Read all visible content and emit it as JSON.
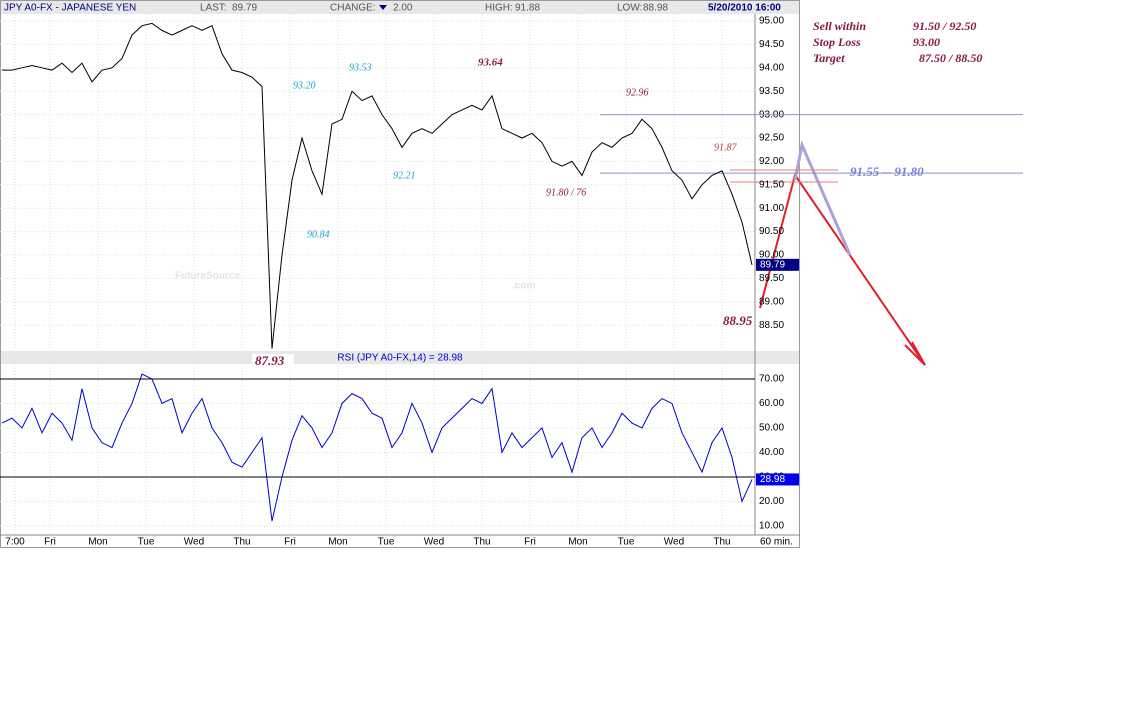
{
  "chart_data": {
    "type": "line",
    "title": "JPY A0-FX - JAPANESE YEN",
    "header": {
      "last_label": "LAST:",
      "last": "89.79",
      "change_label": "CHANGE:",
      "change": "2.00",
      "high_label": "HIGH:",
      "high": "91.88",
      "low_label": "LOW:",
      "low": "88.98",
      "date": "5/20/2010 16:00"
    },
    "watermark": "FutureSource",
    "watermark_suffix": ".com",
    "series": [
      {
        "name": "JPY A0-FX",
        "color": "#000000",
        "values": [
          93.95,
          93.95,
          94.0,
          94.05,
          94.0,
          93.95,
          94.1,
          93.9,
          94.1,
          93.7,
          93.95,
          94.0,
          94.2,
          94.7,
          94.9,
          94.95,
          94.8,
          94.7,
          94.8,
          94.9,
          94.8,
          94.9,
          94.3,
          93.95,
          93.9,
          93.8,
          93.6,
          88.0,
          90.0,
          91.6,
          92.5,
          91.8,
          91.3,
          92.8,
          92.9,
          93.5,
          93.3,
          93.4,
          93.0,
          92.7,
          92.3,
          92.6,
          92.7,
          92.6,
          92.8,
          93.0,
          93.1,
          93.2,
          93.1,
          93.4,
          92.7,
          92.6,
          92.5,
          92.6,
          92.4,
          92.0,
          91.9,
          92.0,
          91.7,
          92.2,
          92.4,
          92.3,
          92.5,
          92.6,
          92.9,
          92.7,
          92.3,
          91.8,
          91.6,
          91.2,
          91.5,
          91.7,
          91.8,
          91.3,
          90.7,
          89.79
        ]
      }
    ],
    "last_box": "89.79",
    "xlim": [
      -0.2,
      75.3
    ],
    "xticks": [
      {
        "value": 1.3,
        "label": "7:00"
      },
      {
        "value": 4.8,
        "label": "Fri"
      },
      {
        "value": 9.6,
        "label": "Mon"
      },
      {
        "value": 14.4,
        "label": "Tue"
      },
      {
        "value": 19.2,
        "label": "Wed"
      },
      {
        "value": 24,
        "label": "Thu"
      },
      {
        "value": 28.8,
        "label": "Fri"
      },
      {
        "value": 33.6,
        "label": "Mon"
      },
      {
        "value": 38.4,
        "label": "Tue"
      },
      {
        "value": 43.2,
        "label": "Wed"
      },
      {
        "value": 48,
        "label": "Thu"
      },
      {
        "value": 52.8,
        "label": "Fri"
      },
      {
        "value": 57.6,
        "label": "Mon"
      },
      {
        "value": 62.4,
        "label": "Tue"
      },
      {
        "value": 67.2,
        "label": "Wed"
      },
      {
        "value": 72,
        "label": "Thu"
      }
    ],
    "x_unit": "60 min.",
    "ylim": [
      87.97,
      95.15
    ],
    "yticks": [
      {
        "value": 95,
        "label": "95.00"
      },
      {
        "value": 94.5,
        "label": "94.50"
      },
      {
        "value": 94,
        "label": "94.00"
      },
      {
        "value": 93.5,
        "label": "93.50"
      },
      {
        "value": 93,
        "label": "93.00"
      },
      {
        "value": 92.5,
        "label": "92.50"
      },
      {
        "value": 92,
        "label": "92.00"
      },
      {
        "value": 91.5,
        "label": "91.50"
      },
      {
        "value": 91,
        "label": "91.00"
      },
      {
        "value": 90.5,
        "label": "90.50"
      },
      {
        "value": 90,
        "label": "90.00"
      },
      {
        "value": 89.5,
        "label": "89.50"
      },
      {
        "value": 89,
        "label": "89.00"
      },
      {
        "value": 88.5,
        "label": "88.50"
      }
    ],
    "levels": [
      93.0,
      91.75
    ],
    "grid": true,
    "annotations": [
      {
        "text": "93.20",
        "color": "#1aa0c8"
      },
      {
        "text": "93.53",
        "color": "#1aa0c8"
      },
      {
        "text": "92.21",
        "color": "#1aa0c8"
      },
      {
        "text": "90.84",
        "color": "#1aa0c8"
      },
      {
        "text": "93.64",
        "color": "#8b1a3a"
      },
      {
        "text": "92.96",
        "color": "#8b1a3a"
      },
      {
        "text": "91.87",
        "color": "#c0304a"
      },
      {
        "text": "91.80  / 76",
        "color": "#8b1a3a"
      },
      {
        "text": "88.95",
        "color": "#8b1a3a"
      },
      {
        "text": "87.93",
        "color": "#8b1a3a"
      },
      {
        "text": "91.55 -- 91.80",
        "color": "#8080d8"
      }
    ],
    "notes": [
      [
        "Sell within",
        "91.50 / 92.50"
      ],
      [
        "Stop Loss",
        "93.00"
      ],
      [
        "Target",
        "87.50 / 88.50"
      ]
    ],
    "rsi": {
      "title": "RSI (JPY A0-FX,14) = 28.98",
      "color": "#0000cc",
      "values": [
        52,
        54,
        50,
        58,
        48,
        56,
        52,
        45,
        66,
        50,
        44,
        42,
        52,
        60,
        72,
        70,
        60,
        62,
        48,
        56,
        62,
        50,
        44,
        36,
        34,
        40,
        46,
        12,
        30,
        45,
        55,
        50,
        42,
        48,
        60,
        64,
        62,
        56,
        54,
        42,
        48,
        60,
        52,
        40,
        50,
        54,
        58,
        62,
        60,
        66,
        40,
        48,
        42,
        46,
        50,
        38,
        44,
        32,
        46,
        50,
        42,
        48,
        56,
        52,
        50,
        58,
        62,
        60,
        48,
        40,
        32,
        44,
        50,
        38,
        20,
        28.98
      ],
      "last_box": "28.98",
      "levels": [
        70,
        30
      ],
      "ylim": [
        6.3,
        75.7
      ],
      "yticks": [
        {
          "value": 70,
          "label": "70.00"
        },
        {
          "value": 60,
          "label": "60.00"
        },
        {
          "value": 50,
          "label": "50.00"
        },
        {
          "value": 40,
          "label": "40.00"
        },
        {
          "value": 30,
          "label": "30.00"
        },
        {
          "value": 20,
          "label": "20.00"
        },
        {
          "value": 10,
          "label": "10.00"
        }
      ]
    }
  }
}
